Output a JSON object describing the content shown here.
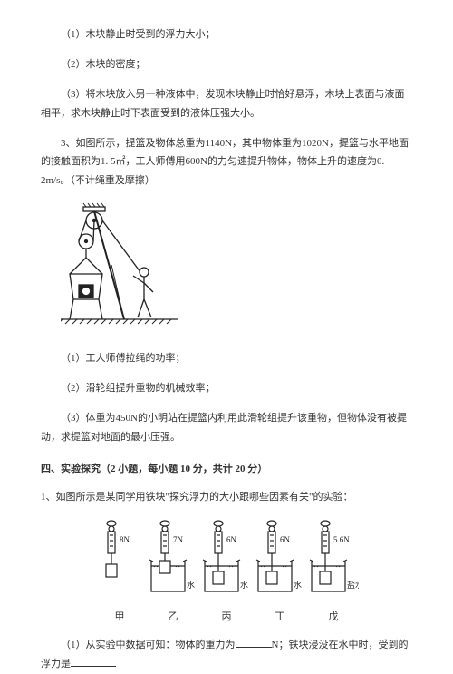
{
  "q1": {
    "sub1": "（1）木块静止时受到的浮力大小；",
    "sub2": "（2）木块的密度；",
    "sub3": "（3）将木块放入另一种液体中，发现木块静止时恰好悬浮，木块上表面与液面相平，求木块静止时下表面受到的液体压强大小。"
  },
  "q3": {
    "stem": "3、如图所示，提篮及物体总重为1140N，其中物体重为1020N，提篮与水平地面的接触面积为1. 5㎡，工人师傅用600N的力匀速提升物体，物体上升的速度为0. 2m/s。（不计绳重及摩擦）",
    "sub1": "（1）工人师傅拉绳的功率；",
    "sub2": "（2）滑轮组提升重物的机械效率；",
    "sub3": "（3）体重为450N的小明站在提篮内利用此滑轮组提升该重物，但物体没有被提动，求提篮对地面的最小压强。"
  },
  "section4": {
    "title": "四、实验探究（2 小题，每小题 10 分，共计 20 分）",
    "q1stem": "1、如图所示是某同学用铁块\"探究浮力的大小跟哪些因素有关\"的实验：",
    "q1sub1a": "（1）从实验中数据可知：物体的重力为",
    "q1sub1b": "N；铁块浸没在水中时，受到的浮力是"
  },
  "exp": {
    "items": [
      {
        "label": "甲",
        "reading": "8N",
        "liquid": ""
      },
      {
        "label": "乙",
        "reading": "7N",
        "liquid": "水"
      },
      {
        "label": "丙",
        "reading": "6N",
        "liquid": "水"
      },
      {
        "label": "丁",
        "reading": "6N",
        "liquid": "水"
      },
      {
        "label": "戊",
        "reading": "5.6N",
        "liquid": "盐水"
      }
    ]
  },
  "style": {
    "text_color": "#333333",
    "bg": "#ffffff",
    "fontsize": 11,
    "stroke": "#222222"
  }
}
